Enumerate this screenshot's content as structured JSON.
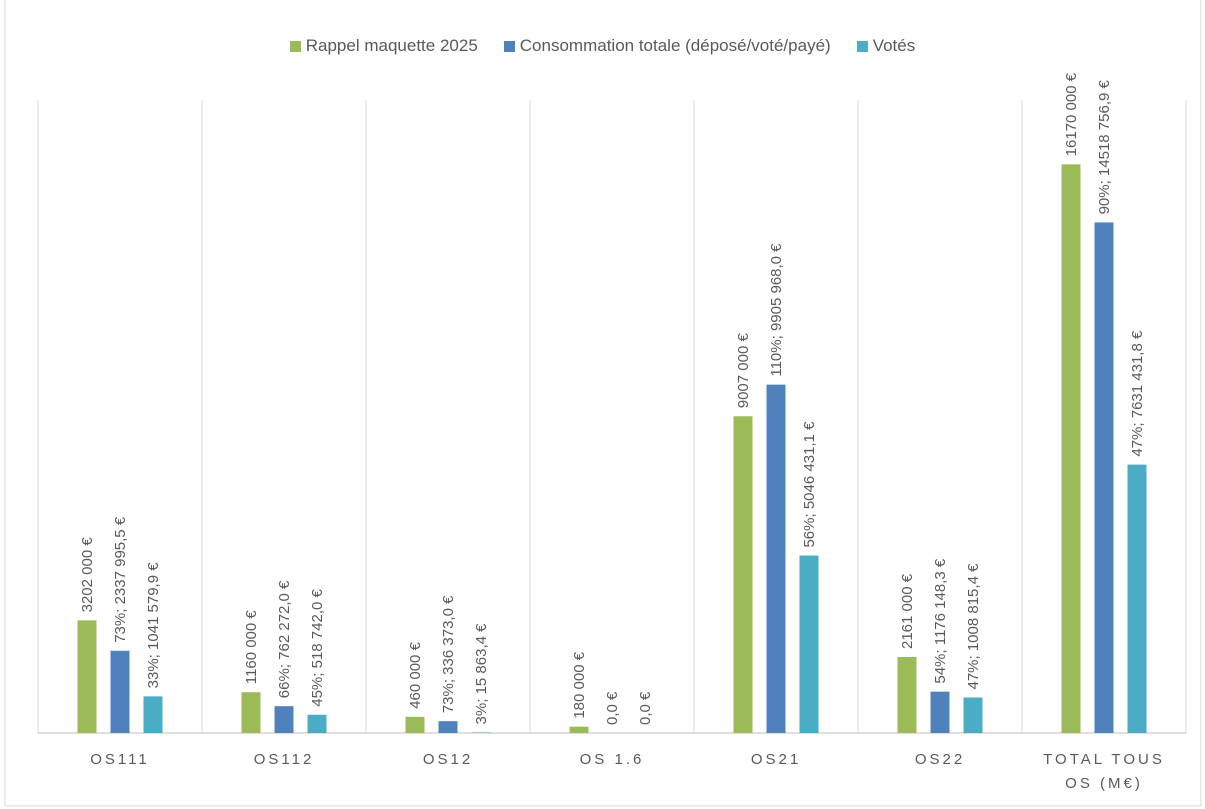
{
  "chart_data": {
    "type": "bar",
    "categories": [
      "OS111",
      "OS112",
      "OS12",
      "OS 1.6",
      "OS21",
      "OS22",
      "TOTAL TOUS OS (M€)"
    ],
    "series": [
      {
        "name": "Rappel maquette 2025",
        "color": "#9bbb59",
        "values": [
          3202000,
          1160000,
          460000,
          180000,
          9007000,
          2161000,
          16170000
        ],
        "value_labels": [
          "3202 000 €",
          "1160 000 €",
          "460 000 €",
          "180 000 €",
          "9007 000 €",
          "2161 000 €",
          "16170 000 €"
        ]
      },
      {
        "name": "Consommation totale (déposé/voté/payé)",
        "color": "#4f81bd",
        "values": [
          2337995.5,
          762272.0,
          336373.0,
          0,
          9905968.0,
          1176148.3,
          14518756.9
        ],
        "value_labels": [
          "73%; 2337 995,5 €",
          "66%; 762 272,0 €",
          "73%; 336 373,0 €",
          "0,0 €",
          "110%; 9905 968,0 €",
          "54%; 1176 148,3 €",
          "90%; 14518 756,9 €"
        ]
      },
      {
        "name": "Votés",
        "color": "#4bacc6",
        "values": [
          1041579.9,
          518742.0,
          15863.4,
          0,
          5046431.1,
          1008815.4,
          7631431.8
        ],
        "value_labels": [
          "33%; 1041 579,9 €",
          "45%; 518 742,0 €",
          "3%; 15 863,4 €",
          "0,0 €",
          "56%; 5046 431,1 €",
          "47%; 1008 815,4 €",
          "47%; 7631 431,8 €"
        ]
      }
    ],
    "ylim": [
      0,
      18000000
    ],
    "legend": "top"
  }
}
